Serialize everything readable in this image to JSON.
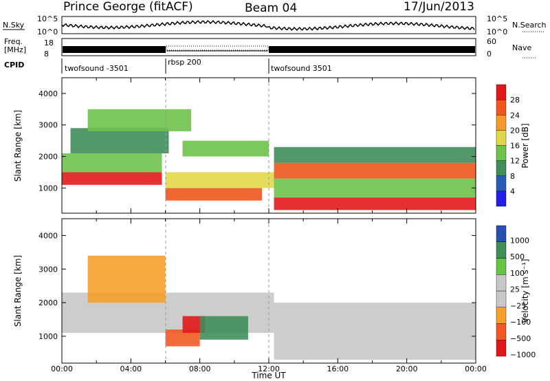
{
  "header": {
    "station": "Prince George (fitACF)",
    "beam": "Beam 04",
    "date": "17/Jun/2013"
  },
  "strip": {
    "nsky_label": "N.Sky",
    "nsky_ticks": [
      "10^5",
      "10^0"
    ],
    "nsearch_label": "N.Search",
    "nsearch_ticks": [
      "10^5",
      "10^0"
    ],
    "freq_label_1": "Freq.",
    "freq_label_2": "[MHz]",
    "freq_ticks": [
      "18",
      "8"
    ],
    "nave_label": "Nave",
    "nave_ticks": [
      "60",
      "0"
    ],
    "cpid_label": "CPID",
    "cpid_segments": [
      "twofsound -3501",
      "rbsp 200",
      "twofsound 3501"
    ]
  },
  "colors": {
    "power": [
      "#1f1fe6",
      "#2a5bb8",
      "#3f8d5a",
      "#6fc24a",
      "#e0d84a",
      "#f59a2a",
      "#f0561e",
      "#e3181b"
    ],
    "velocity": [
      "#e3181b",
      "#f15a22",
      "#f5a02a",
      "#c8c8c8",
      "#c8c8c8",
      "#66c542",
      "#3f8d5a",
      "#2a4fb2"
    ]
  },
  "chart_data": [
    {
      "type": "heatmap",
      "title": "Power",
      "ylabel": "Slant Range [km]",
      "xlabel": "",
      "x_ticks": [
        "00:00",
        "04:00",
        "08:00",
        "12:00",
        "16:00",
        "20:00",
        "00:00"
      ],
      "y_ticks": [
        "1000",
        "2000",
        "3000",
        "4000"
      ],
      "ylim": [
        200,
        4500
      ],
      "colorbar": {
        "label": "Power [dB]",
        "ticks": [
          "4",
          "8",
          "12",
          "16",
          "20",
          "24",
          "28"
        ]
      },
      "bands": [
        {
          "t0": 0.0,
          "t1": 5.8,
          "r0": 1100,
          "r1": 1500,
          "level": 7
        },
        {
          "t0": 0.0,
          "t1": 5.8,
          "r0": 1500,
          "r1": 2100,
          "level": 3
        },
        {
          "t0": 0.5,
          "t1": 6.2,
          "r0": 2100,
          "r1": 2900,
          "level": 2
        },
        {
          "t0": 1.5,
          "t1": 7.5,
          "r0": 2800,
          "r1": 3500,
          "level": 3
        },
        {
          "t0": 6.0,
          "t1": 11.6,
          "r0": 600,
          "r1": 1000,
          "level": 6
        },
        {
          "t0": 6.0,
          "t1": 12.3,
          "r0": 1000,
          "r1": 1500,
          "level": 4
        },
        {
          "t0": 7.0,
          "t1": 12.0,
          "r0": 2000,
          "r1": 2500,
          "level": 3
        },
        {
          "t0": 12.3,
          "t1": 24.0,
          "r0": 300,
          "r1": 700,
          "level": 7
        },
        {
          "t0": 12.3,
          "t1": 24.0,
          "r0": 700,
          "r1": 1300,
          "level": 3
        },
        {
          "t0": 12.3,
          "t1": 24.0,
          "r0": 1300,
          "r1": 1800,
          "level": 6
        },
        {
          "t0": 12.3,
          "t1": 24.0,
          "r0": 1800,
          "r1": 2300,
          "level": 2
        }
      ]
    },
    {
      "type": "heatmap",
      "title": "Velocity",
      "ylabel": "Slant Range [km]",
      "xlabel": "Time UT",
      "x_ticks": [
        "00:00",
        "04:00",
        "08:00",
        "12:00",
        "16:00",
        "20:00",
        "00:00"
      ],
      "y_ticks": [
        "1000",
        "2000",
        "3000",
        "4000"
      ],
      "ylim": [
        200,
        4500
      ],
      "colorbar": {
        "label": "Velocity [m s⁻¹]",
        "ticks": [
          "1000",
          "500",
          "100",
          "25",
          "−25",
          "−100",
          "−500",
          "−1000"
        ]
      },
      "bands": [
        {
          "t0": 0.0,
          "t1": 12.3,
          "r0": 1100,
          "r1": 2300,
          "level": 3
        },
        {
          "t0": 12.3,
          "t1": 24.0,
          "r0": 300,
          "r1": 2000,
          "level": 3
        },
        {
          "t0": 6.0,
          "t1": 8.0,
          "r0": 700,
          "r1": 1200,
          "level": 1
        },
        {
          "t0": 7.0,
          "t1": 8.3,
          "r0": 1100,
          "r1": 1600,
          "level": 0
        },
        {
          "t0": 8.0,
          "t1": 10.8,
          "r0": 900,
          "r1": 1600,
          "level": 6
        },
        {
          "t0": 1.5,
          "t1": 6.0,
          "r0": 2000,
          "r1": 3400,
          "level": 2
        }
      ]
    }
  ]
}
